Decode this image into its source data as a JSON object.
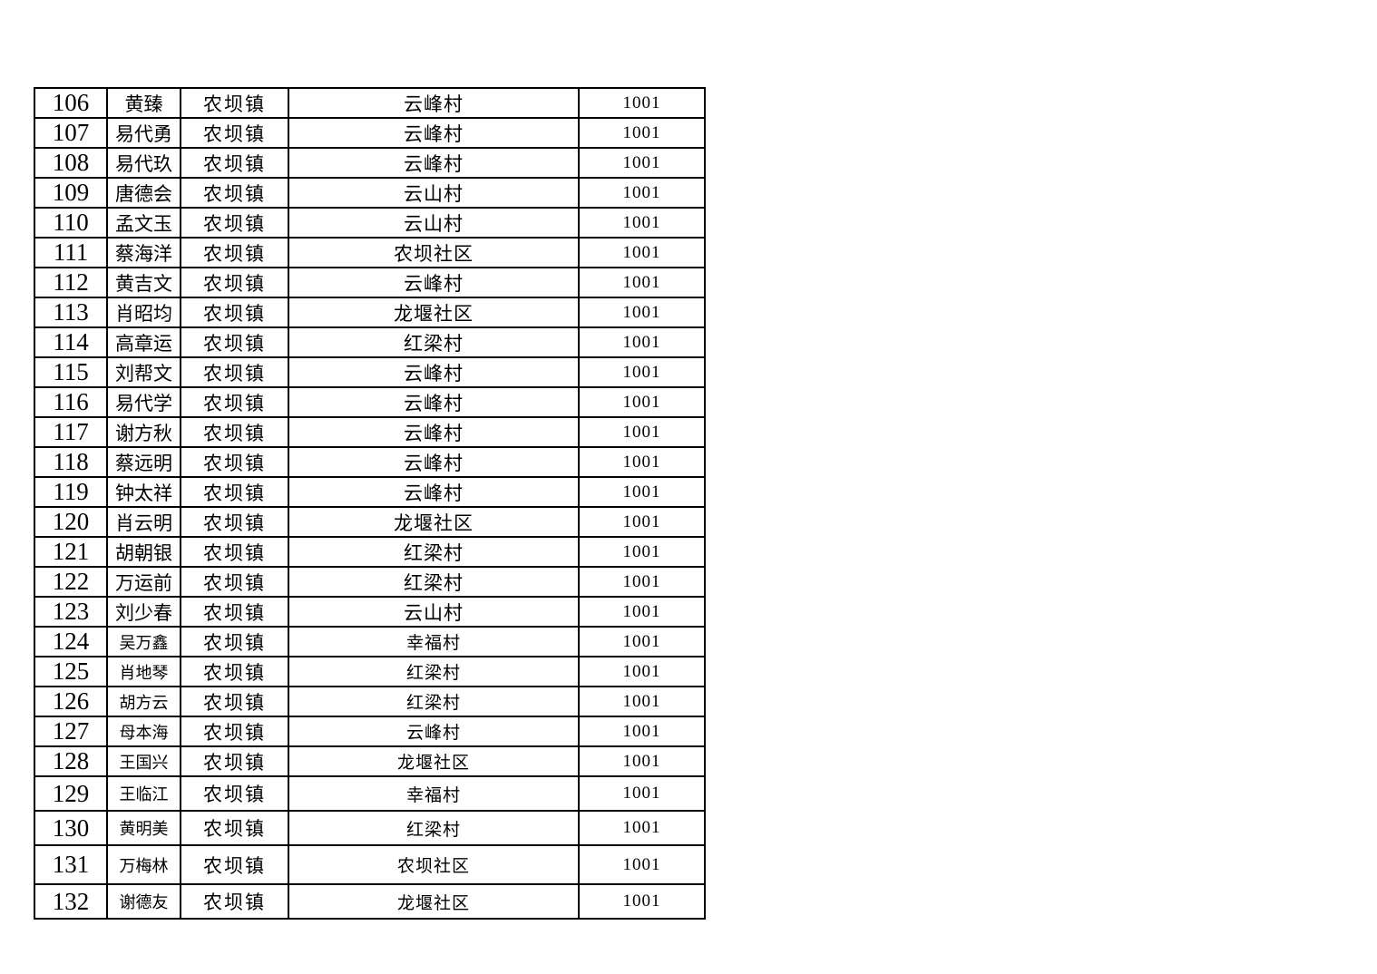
{
  "document": {
    "background": "#ffffff",
    "border_color": "#000000",
    "text_color": "#000000"
  },
  "table": {
    "rows": [
      {
        "no": "106",
        "name": "黄臻",
        "town": "农坝镇",
        "village": "云峰村",
        "code": "1001"
      },
      {
        "no": "107",
        "name": "易代勇",
        "town": "农坝镇",
        "village": "云峰村",
        "code": "1001"
      },
      {
        "no": "108",
        "name": "易代玖",
        "town": "农坝镇",
        "village": "云峰村",
        "code": "1001"
      },
      {
        "no": "109",
        "name": "唐德会",
        "town": "农坝镇",
        "village": "云山村",
        "code": "1001"
      },
      {
        "no": "110",
        "name": "孟文玉",
        "town": "农坝镇",
        "village": "云山村",
        "code": "1001"
      },
      {
        "no": "111",
        "name": "蔡海洋",
        "town": "农坝镇",
        "village": "农坝社区",
        "code": "1001"
      },
      {
        "no": "112",
        "name": "黄吉文",
        "town": "农坝镇",
        "village": "云峰村",
        "code": "1001"
      },
      {
        "no": "113",
        "name": "肖昭均",
        "town": "农坝镇",
        "village": "龙堰社区",
        "code": "1001"
      },
      {
        "no": "114",
        "name": "高章运",
        "town": "农坝镇",
        "village": "红梁村",
        "code": "1001"
      },
      {
        "no": "115",
        "name": "刘帮文",
        "town": "农坝镇",
        "village": "云峰村",
        "code": "1001"
      },
      {
        "no": "116",
        "name": "易代学",
        "town": "农坝镇",
        "village": "云峰村",
        "code": "1001"
      },
      {
        "no": "117",
        "name": "谢方秋",
        "town": "农坝镇",
        "village": "云峰村",
        "code": "1001"
      },
      {
        "no": "118",
        "name": "蔡远明",
        "town": "农坝镇",
        "village": "云峰村",
        "code": "1001"
      },
      {
        "no": "119",
        "name": "钟太祥",
        "town": "农坝镇",
        "village": "云峰村",
        "code": "1001"
      },
      {
        "no": "120",
        "name": "肖云明",
        "town": "农坝镇",
        "village": "龙堰社区",
        "code": "1001"
      },
      {
        "no": "121",
        "name": "胡朝银",
        "town": "农坝镇",
        "village": "红梁村",
        "code": "1001"
      },
      {
        "no": "122",
        "name": "万运前",
        "town": "农坝镇",
        "village": "红梁村",
        "code": "1001"
      },
      {
        "no": "123",
        "name": "刘少春",
        "town": "农坝镇",
        "village": "云山村",
        "code": "1001"
      },
      {
        "no": "124",
        "name": "吴万鑫",
        "town": "农坝镇",
        "village": "幸福村",
        "code": "1001"
      },
      {
        "no": "125",
        "name": "肖地琴",
        "town": "农坝镇",
        "village": "红梁村",
        "code": "1001"
      },
      {
        "no": "126",
        "name": "胡方云",
        "town": "农坝镇",
        "village": "红梁村",
        "code": "1001"
      },
      {
        "no": "127",
        "name": "母本海",
        "town": "农坝镇",
        "village": "云峰村",
        "code": "1001"
      },
      {
        "no": "128",
        "name": "王国兴",
        "town": "农坝镇",
        "village": "龙堰社区",
        "code": "1001"
      },
      {
        "no": "129",
        "name": "王临江",
        "town": "农坝镇",
        "village": "幸福村",
        "code": "1001"
      },
      {
        "no": "130",
        "name": "黄明美",
        "town": "农坝镇",
        "village": "红梁村",
        "code": "1001"
      },
      {
        "no": "131",
        "name": "万梅林",
        "town": "农坝镇",
        "village": "农坝社区",
        "code": "1001"
      },
      {
        "no": "132",
        "name": "谢德友",
        "town": "农坝镇",
        "village": "龙堰社区",
        "code": "1001"
      }
    ]
  }
}
